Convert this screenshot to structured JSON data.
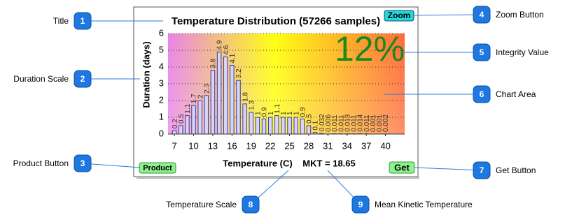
{
  "callouts": [
    {
      "number": "1",
      "label": "Title"
    },
    {
      "number": "2",
      "label": "Duration Scale"
    },
    {
      "number": "3",
      "label": "Product Button"
    },
    {
      "number": "4",
      "label": "Zoom Button"
    },
    {
      "number": "5",
      "label": "Integrity Value"
    },
    {
      "number": "6",
      "label": "Chart Area"
    },
    {
      "number": "7",
      "label": "Get Button"
    },
    {
      "number": "8",
      "label": "Temperature Scale"
    },
    {
      "number": "9",
      "label": "Mean Kinetic Temperature"
    }
  ],
  "buttons": {
    "zoom": "Zoom",
    "product": "Product",
    "get": "Get"
  },
  "integrity": "12%",
  "mkt": "MKT = 18.65",
  "chart_data": {
    "type": "bar",
    "title": "Temperature Distribution (57266 samples)",
    "x_label": "Temperature (C)",
    "y_label": "Duration (days)",
    "x": [
      7,
      8,
      9,
      10,
      11,
      12,
      13,
      14,
      15,
      16,
      17,
      18,
      19,
      20,
      21,
      22,
      23,
      24,
      25,
      26,
      27,
      28,
      29,
      30,
      31,
      32,
      33,
      34,
      35,
      36,
      37,
      38,
      39,
      40
    ],
    "values": [
      0.2,
      0.5,
      1.1,
      1.7,
      2,
      2.3,
      3.8,
      4.9,
      4.6,
      4.1,
      3.2,
      1.8,
      1.3,
      1,
      0.9,
      1,
      1.1,
      1,
      1,
      1,
      0.9,
      0.5,
      0.1,
      0.032,
      0.006,
      0.011,
      0.011,
      0.013,
      0.011,
      0.014,
      0.011,
      0.001,
      0.001,
      0.002
    ],
    "xlim": [
      6,
      43
    ],
    "xticks": [
      7,
      10,
      13,
      16,
      19,
      22,
      25,
      28,
      31,
      34,
      37,
      40
    ],
    "ylim": [
      0,
      6
    ],
    "yticks": [
      0,
      1,
      2,
      3,
      4,
      5,
      6
    ],
    "grid": true
  }
}
